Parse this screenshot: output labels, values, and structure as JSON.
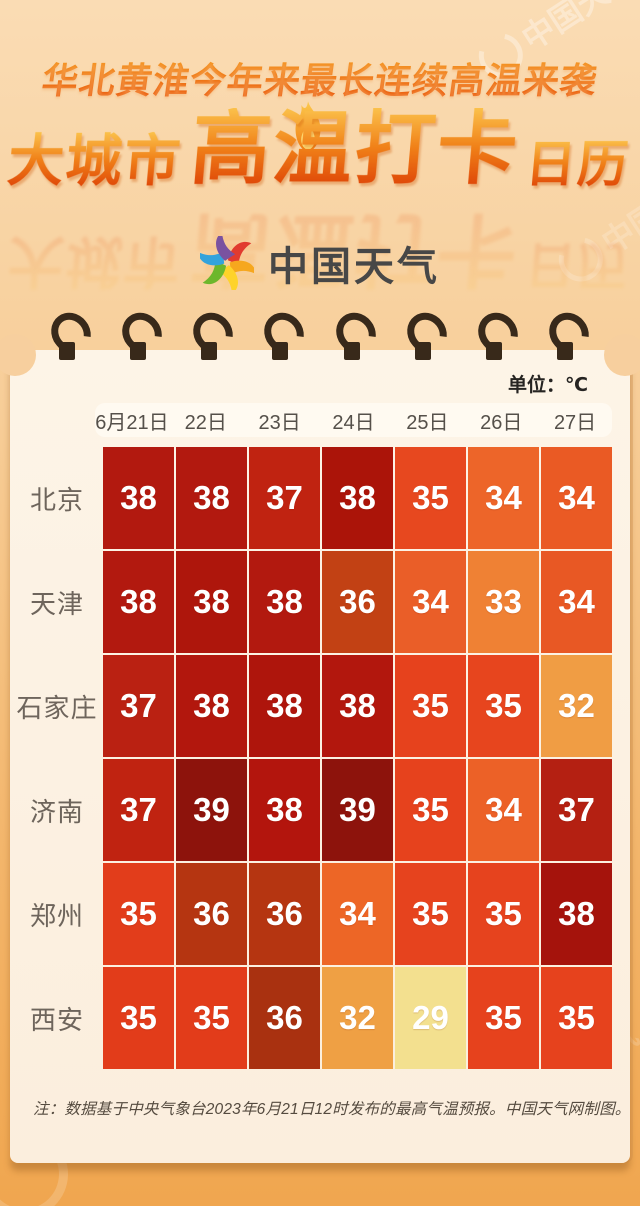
{
  "header": {
    "subtitle": "华北黄淮今年来最长连续高温来袭",
    "title_part1": "大城市",
    "title_part2": "高温打卡",
    "title_part3": "日历",
    "logo_text": "中国天气"
  },
  "calendar": {
    "unit_label": "单位：℃",
    "ring_count": 8,
    "note": "注：数据基于中央气象台2023年6月21日12时发布的最高气温预报。中国天气网制图。"
  },
  "watermark_text": "中国天气",
  "colors": {
    "background_top": "#fadcb4",
    "background_bottom": "#f0a64f",
    "card_background": "#fdf4e7",
    "ring_color": "#38291a",
    "title_gradient_top": "#fbc14b",
    "title_gradient_bottom": "#dd4106",
    "cell_text": "#ffffff",
    "city_text": "#6e655c",
    "date_text": "#55504a"
  },
  "chart_data": {
    "type": "heatmap",
    "title": "大城市高温打卡日历",
    "subtitle": "华北黄淮今年来最长连续高温来袭",
    "unit": "℃",
    "columns": [
      "6月21日",
      "22日",
      "23日",
      "24日",
      "25日",
      "26日",
      "27日"
    ],
    "rows": [
      {
        "city": "北京",
        "values": [
          38,
          38,
          37,
          38,
          35,
          34,
          34
        ],
        "colors": [
          "#b2190f",
          "#b2190f",
          "#c02311",
          "#ab1409",
          "#e7481f",
          "#ed6529",
          "#ea5a24"
        ]
      },
      {
        "city": "天津",
        "values": [
          38,
          38,
          38,
          36,
          34,
          33,
          34
        ],
        "colors": [
          "#b2190f",
          "#ae160c",
          "#b2190f",
          "#c24114",
          "#ea5e28",
          "#ef8134",
          "#e85824"
        ]
      },
      {
        "city": "石家庄",
        "values": [
          37,
          38,
          38,
          38,
          35,
          35,
          32
        ],
        "colors": [
          "#ba2112",
          "#b2170d",
          "#ae150c",
          "#b2170d",
          "#e6421d",
          "#e7451e",
          "#f09d44"
        ]
      },
      {
        "city": "济南",
        "values": [
          37,
          39,
          38,
          39,
          35,
          34,
          37
        ],
        "colors": [
          "#c02311",
          "#8d130c",
          "#b3150d",
          "#8d130c",
          "#e6421d",
          "#ec6127",
          "#b42012"
        ]
      },
      {
        "city": "郑州",
        "values": [
          35,
          36,
          36,
          34,
          35,
          35,
          38
        ],
        "colors": [
          "#e23d1b",
          "#b53511",
          "#b53511",
          "#ed6626",
          "#e6431e",
          "#e6431e",
          "#a5130c"
        ]
      },
      {
        "city": "西安",
        "values": [
          35,
          35,
          36,
          32,
          29,
          35,
          35
        ],
        "colors": [
          "#e23c1a",
          "#e23c1a",
          "#a93110",
          "#efa044",
          "#f3e08f",
          "#e6421d",
          "#e6421d"
        ]
      }
    ]
  }
}
